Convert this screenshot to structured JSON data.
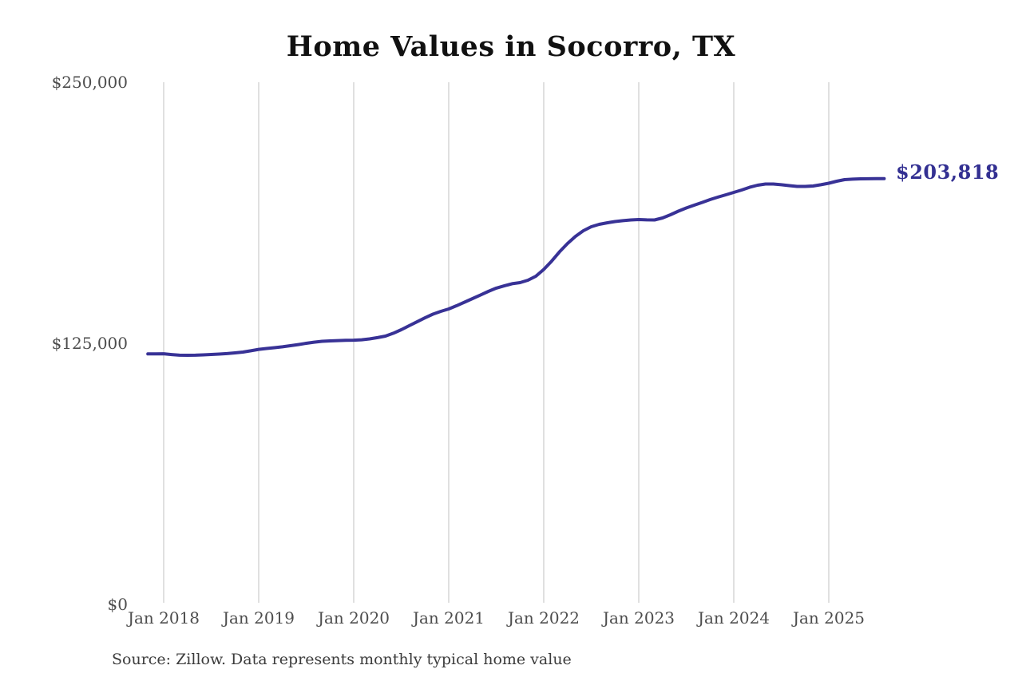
{
  "chart": {
    "end_label": "$203,818",
    "source_note": "Source: Zillow. Data represents monthly typical home value",
    "colors": {
      "line": "#383296",
      "end_label": "#333092",
      "gridline": "#cccccc",
      "tick_text": "#4d4d4d",
      "title_text": "#111111",
      "source_text": "#3c3c3c",
      "background": "#ffffff"
    }
  },
  "chart_data": {
    "type": "line",
    "title": "Home Values in Socorro, TX",
    "xlabel": "",
    "ylabel": "",
    "ylim": [
      0,
      250000
    ],
    "grid": "vertical-only",
    "legend_position": "none",
    "y_ticks": [
      {
        "label": "$0",
        "value": 0
      },
      {
        "label": "$125,000",
        "value": 125000
      },
      {
        "label": "$250,000",
        "value": 250000
      }
    ],
    "x_ticks": [
      {
        "label": "Jan 2018",
        "month": "2018-01"
      },
      {
        "label": "Jan 2019",
        "month": "2019-01"
      },
      {
        "label": "Jan 2020",
        "month": "2020-01"
      },
      {
        "label": "Jan 2021",
        "month": "2021-01"
      },
      {
        "label": "Jan 2022",
        "month": "2022-01"
      },
      {
        "label": "Jan 2023",
        "month": "2023-01"
      },
      {
        "label": "Jan 2024",
        "month": "2024-01"
      },
      {
        "label": "Jan 2025",
        "month": "2025-01"
      }
    ],
    "end_annotation": {
      "label": "$203,818",
      "value": 203818,
      "month": "2025-08"
    },
    "series": [
      {
        "name": "Monthly typical home value",
        "color": "#383296",
        "x": [
          "2017-11",
          "2017-12",
          "2018-01",
          "2018-02",
          "2018-03",
          "2018-04",
          "2018-05",
          "2018-06",
          "2018-07",
          "2018-08",
          "2018-09",
          "2018-10",
          "2018-11",
          "2018-12",
          "2019-01",
          "2019-02",
          "2019-03",
          "2019-04",
          "2019-05",
          "2019-06",
          "2019-07",
          "2019-08",
          "2019-09",
          "2019-10",
          "2019-11",
          "2019-12",
          "2020-01",
          "2020-02",
          "2020-03",
          "2020-04",
          "2020-05",
          "2020-06",
          "2020-07",
          "2020-08",
          "2020-09",
          "2020-10",
          "2020-11",
          "2020-12",
          "2021-01",
          "2021-02",
          "2021-03",
          "2021-04",
          "2021-05",
          "2021-06",
          "2021-07",
          "2021-08",
          "2021-09",
          "2021-10",
          "2021-11",
          "2021-12",
          "2022-01",
          "2022-02",
          "2022-03",
          "2022-04",
          "2022-05",
          "2022-06",
          "2022-07",
          "2022-08",
          "2022-09",
          "2022-10",
          "2022-11",
          "2022-12",
          "2023-01",
          "2023-02",
          "2023-03",
          "2023-04",
          "2023-05",
          "2023-06",
          "2023-07",
          "2023-08",
          "2023-09",
          "2023-10",
          "2023-11",
          "2023-12",
          "2024-01",
          "2024-02",
          "2024-03",
          "2024-04",
          "2024-05",
          "2024-06",
          "2024-07",
          "2024-08",
          "2024-09",
          "2024-10",
          "2024-11",
          "2024-12",
          "2025-01",
          "2025-02",
          "2025-03",
          "2025-04",
          "2025-05",
          "2025-06",
          "2025-07",
          "2025-08"
        ],
        "values": [
          119900,
          119950,
          120000,
          119600,
          119300,
          119250,
          119300,
          119450,
          119650,
          119850,
          120050,
          120400,
          120800,
          121400,
          122100,
          122500,
          122900,
          123300,
          123850,
          124400,
          125000,
          125550,
          125950,
          126150,
          126300,
          126400,
          126500,
          126700,
          127100,
          127700,
          128450,
          129800,
          131500,
          133400,
          135300,
          137200,
          138950,
          140300,
          141450,
          143000,
          144700,
          146400,
          148100,
          149850,
          151400,
          152500,
          153500,
          154050,
          155200,
          157100,
          160350,
          164350,
          168800,
          172800,
          176200,
          178900,
          180800,
          181950,
          182700,
          183300,
          183700,
          184050,
          184250,
          184100,
          184050,
          185000,
          186550,
          188250,
          189800,
          191150,
          192450,
          193800,
          195000,
          196100,
          197250,
          198400,
          199700,
          200700,
          201250,
          201250,
          200900,
          200500,
          200100,
          200100,
          200300,
          200900,
          201650,
          202600,
          203350,
          203600,
          203750,
          203800,
          203818,
          203818
        ]
      }
    ]
  }
}
